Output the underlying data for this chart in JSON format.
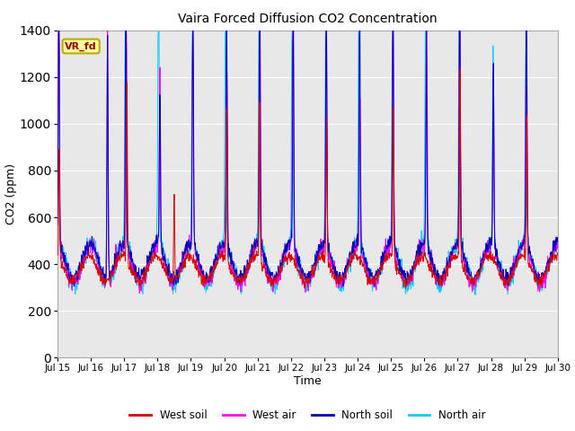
{
  "title": "Vaira Forced Diffusion CO2 Concentration",
  "xlabel": "Time",
  "ylabel": "CO2 (ppm)",
  "ylim": [
    0,
    1400
  ],
  "yticks": [
    0,
    200,
    400,
    600,
    800,
    1000,
    1200,
    1400
  ],
  "xtick_labels": [
    "Jul 15",
    "Jul 16",
    "Jul 17",
    "Jul 18",
    "Jul 19",
    "Jul 20",
    "Jul 21",
    "Jul 22",
    "Jul 23",
    "Jul 24",
    "Jul 25",
    "Jul 26",
    "Jul 27",
    "Jul 28",
    "Jul 29",
    "Jul 30"
  ],
  "legend_label": "VR_fd",
  "colors": {
    "west_soil": "#dd0000",
    "west_air": "#ff00ff",
    "north_soil": "#0000bb",
    "north_air": "#00ccff"
  },
  "plot_bg": "#e8e8e8",
  "n_days": 15,
  "pts_per_day": 96,
  "seed": 7
}
